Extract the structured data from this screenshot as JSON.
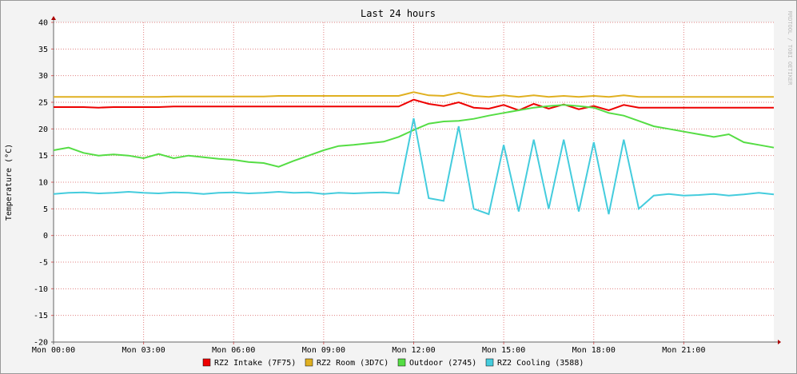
{
  "chart_data": {
    "type": "line",
    "title": "Last 24 hours",
    "watermark": "RRDTOOL / TOBI OETIKER",
    "y_label": "Temperature (°C)",
    "x": [
      0,
      0.5,
      1,
      1.5,
      2,
      2.5,
      3,
      3.5,
      4,
      4.5,
      5,
      5.5,
      6,
      6.5,
      7,
      7.5,
      8,
      8.5,
      9,
      9.5,
      10,
      10.5,
      11,
      11.5,
      12,
      12.5,
      13,
      13.5,
      14,
      14.5,
      15,
      15.5,
      16,
      16.5,
      17,
      17.5,
      18,
      18.5,
      19,
      19.5,
      20,
      20.5,
      21,
      21.5,
      22,
      22.5,
      23,
      23.5,
      24
    ],
    "xlim": [
      0,
      24
    ],
    "xticks": [
      {
        "value": 0,
        "label": "Mon 00:00"
      },
      {
        "value": 3,
        "label": "Mon 03:00"
      },
      {
        "value": 6,
        "label": "Mon 06:00"
      },
      {
        "value": 9,
        "label": "Mon 09:00"
      },
      {
        "value": 12,
        "label": "Mon 12:00"
      },
      {
        "value": 15,
        "label": "Mon 15:00"
      },
      {
        "value": 18,
        "label": "Mon 18:00"
      },
      {
        "value": 21,
        "label": "Mon 21:00"
      }
    ],
    "ylim": [
      -20,
      40
    ],
    "yticks": [
      -20,
      -15,
      -10,
      -5,
      0,
      5,
      10,
      15,
      20,
      25,
      30,
      35,
      40
    ],
    "grid": true,
    "series": [
      {
        "name": "RZ2 Intake (7F75)",
        "color": "#ee0000",
        "values": [
          24.1,
          24.1,
          24.1,
          24.0,
          24.1,
          24.1,
          24.1,
          24.1,
          24.2,
          24.2,
          24.2,
          24.2,
          24.2,
          24.2,
          24.2,
          24.2,
          24.2,
          24.2,
          24.2,
          24.2,
          24.2,
          24.2,
          24.2,
          24.2,
          25.5,
          24.7,
          24.3,
          25.0,
          24.0,
          23.8,
          24.5,
          23.5,
          24.7,
          23.8,
          24.6,
          23.7,
          24.3,
          23.5,
          24.5,
          24.0,
          24.0,
          24.0,
          24.0,
          24.0,
          24.0,
          24.0,
          24.0,
          24.0,
          24.0
        ]
      },
      {
        "name": "RZ2 Room (3D7C)",
        "color": "#e0b020",
        "values": [
          26.0,
          26.0,
          26.0,
          26.0,
          26.0,
          26.0,
          26.0,
          26.0,
          26.1,
          26.1,
          26.1,
          26.1,
          26.1,
          26.1,
          26.1,
          26.2,
          26.2,
          26.2,
          26.2,
          26.2,
          26.2,
          26.2,
          26.2,
          26.2,
          26.9,
          26.3,
          26.2,
          26.8,
          26.2,
          26.0,
          26.3,
          26.0,
          26.3,
          26.0,
          26.2,
          26.0,
          26.2,
          26.0,
          26.3,
          26.0,
          26.0,
          26.0,
          26.0,
          26.0,
          26.0,
          26.0,
          26.0,
          26.0,
          26.0
        ]
      },
      {
        "name": "Outdoor (2745)",
        "color": "#55dd44",
        "values": [
          16,
          16.5,
          15.5,
          15,
          15.2,
          15,
          14.5,
          15.3,
          14.5,
          15,
          14.7,
          14.4,
          14.2,
          13.8,
          13.6,
          12.9,
          14,
          15,
          16,
          16.8,
          17,
          17.3,
          17.6,
          18.5,
          19.8,
          21,
          21.4,
          21.5,
          21.9,
          22.5,
          23,
          23.5,
          24,
          24.3,
          24.5,
          24.3,
          24,
          23,
          22.5,
          21.5,
          20.5,
          20,
          19.5,
          19,
          18.5,
          19,
          17.5,
          17,
          16.5
        ]
      },
      {
        "name": "RZ2 Cooling (3588)",
        "color": "#44ccdd",
        "values": [
          7.8,
          8,
          8.1,
          7.9,
          8,
          8.2,
          8,
          7.9,
          8.1,
          8,
          7.8,
          8,
          8.1,
          7.9,
          8,
          8.2,
          8,
          8.1,
          7.8,
          8,
          7.9,
          8,
          8.1,
          7.9,
          22,
          7,
          6.5,
          20.5,
          5,
          4,
          17,
          4.5,
          18,
          5,
          18,
          4.5,
          17.5,
          4,
          18,
          5,
          7.5,
          7.8,
          7.5,
          7.6,
          7.8,
          7.5,
          7.7,
          8,
          7.7
        ]
      }
    ]
  }
}
